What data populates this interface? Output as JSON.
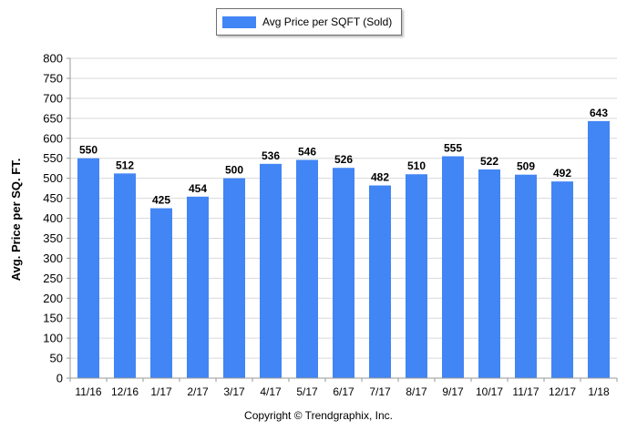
{
  "colors": {
    "bar": "#4285f4",
    "grid": "#d9d9d9",
    "axis": "#9a9a9a"
  },
  "legend": {
    "label": "Avg Price per SQFT (Sold)"
  },
  "footer": {
    "copyright": "Copyright © Trendgraphix, Inc."
  },
  "chart_data": {
    "type": "bar",
    "categories": [
      "11/16",
      "12/16",
      "1/17",
      "2/17",
      "3/17",
      "4/17",
      "5/17",
      "6/17",
      "7/17",
      "8/17",
      "9/17",
      "10/17",
      "11/17",
      "12/17",
      "1/18"
    ],
    "series": [
      {
        "name": "Avg Price per SQFT (Sold)",
        "values": [
          550,
          512,
          425,
          454,
          500,
          536,
          546,
          526,
          482,
          510,
          555,
          522,
          509,
          492,
          643
        ]
      }
    ],
    "ylabel": "Avg. Price per SQ. FT.",
    "xlabel": "",
    "ylim": [
      0,
      800
    ],
    "yticks": [
      0,
      50,
      100,
      150,
      200,
      250,
      300,
      350,
      400,
      450,
      500,
      550,
      600,
      650,
      700,
      750,
      800
    ],
    "grid": true,
    "legend_position": "top-center"
  }
}
